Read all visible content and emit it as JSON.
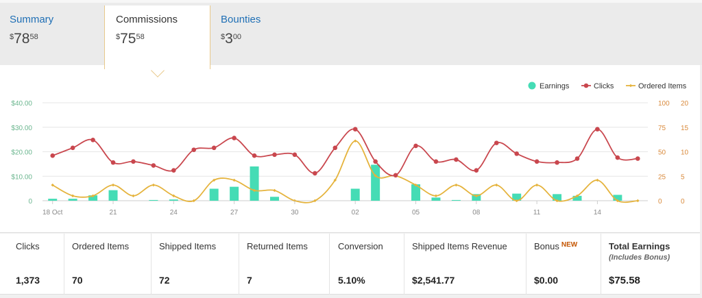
{
  "tabs": [
    {
      "label": "Summary",
      "currency": "$",
      "whole": "78",
      "fraction": "58"
    },
    {
      "label": "Commissions",
      "currency": "$",
      "whole": "75",
      "fraction": "58"
    },
    {
      "label": "Bounties",
      "currency": "$",
      "whole": "3",
      "fraction": "00"
    }
  ],
  "stats": [
    {
      "label": "Clicks",
      "value": "1,373"
    },
    {
      "label": "Ordered Items",
      "value": "70"
    },
    {
      "label": "Shipped Items",
      "value": "72"
    },
    {
      "label": "Returned Items",
      "value": "7"
    },
    {
      "label": "Conversion",
      "value": "5.10%"
    },
    {
      "label": "Shipped Items Revenue",
      "value": "$2,541.77"
    },
    {
      "label": "Bonus",
      "badge": "NEW",
      "value": "$0.00"
    },
    {
      "label": "Total Earnings",
      "sublabel": "(Includes Bonus)",
      "value": "$75.58"
    }
  ],
  "colors": {
    "earnings": "#45dcb5",
    "clicks": "#c9474e",
    "ordered": "#e5b33c",
    "link": "#1f6fb5",
    "left_axis": "#6bb68f",
    "right_axis": "#d98a3c"
  },
  "chart_data": {
    "type": "bar",
    "x_tick_labels": [
      "18 Oct",
      "21",
      "24",
      "27",
      "30",
      "02",
      "05",
      "08",
      "11",
      "14"
    ],
    "legend": [
      "Earnings",
      "Clicks",
      "Ordered Items"
    ],
    "legend_position": "top-right",
    "grid": true,
    "y_left": {
      "ticks": [
        "$40.00",
        "$30.00",
        "$20.00",
        "$10.00",
        "0"
      ],
      "range": [
        0,
        40
      ]
    },
    "y_right_clicks": {
      "ticks": [
        "100",
        "75",
        "50",
        "25",
        "0"
      ],
      "range": [
        0,
        100
      ]
    },
    "y_right_items": {
      "ticks": [
        "20",
        "15",
        "10",
        "5",
        "0"
      ],
      "range": [
        0,
        20
      ]
    },
    "series": [
      {
        "name": "Earnings",
        "kind": "bar",
        "axis": "left",
        "values": [
          0.8,
          0.8,
          2.2,
          4.3,
          0,
          0.3,
          0.5,
          0,
          4.9,
          5.7,
          14.0,
          1.6,
          0,
          0,
          0,
          4.9,
          14.7,
          0,
          6.7,
          1.3,
          0.3,
          2.7,
          0,
          2.9,
          0,
          2.7,
          2.0,
          0,
          2.4,
          0
        ]
      },
      {
        "name": "Clicks",
        "kind": "line",
        "axis": "right_clicks",
        "values": [
          46,
          54,
          62,
          39,
          40,
          36,
          31,
          52,
          54,
          64,
          46,
          47,
          47,
          28,
          54,
          73,
          40,
          26,
          56,
          40,
          42,
          31,
          59,
          48,
          40,
          39,
          43,
          73,
          44,
          43
        ]
      },
      {
        "name": "Ordered Items",
        "kind": "line",
        "axis": "right_items",
        "values": [
          3.2,
          1.0,
          1.0,
          3.2,
          1.0,
          3.2,
          1.0,
          0,
          4.2,
          4.2,
          2.1,
          2.1,
          0,
          0,
          4.2,
          12.2,
          5.1,
          5.1,
          3.2,
          1.0,
          3.2,
          1.0,
          3.2,
          0,
          3.2,
          0,
          1.0,
          4.2,
          0,
          0
        ]
      }
    ]
  }
}
